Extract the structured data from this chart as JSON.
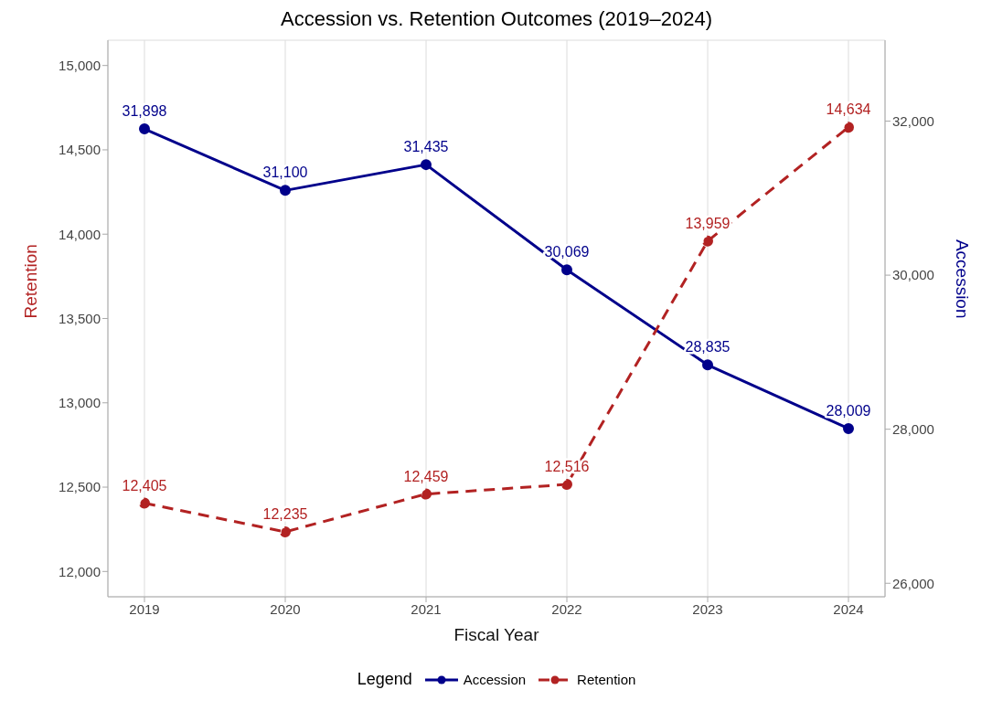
{
  "chart_data": {
    "type": "line",
    "title": "Accession vs. Retention Outcomes (2019–2024)",
    "xlabel": "Fiscal Year",
    "ylabel": "Retention",
    "y2label": "Accession",
    "legend_title": "Legend",
    "categories": [
      "2019",
      "2020",
      "2021",
      "2022",
      "2023",
      "2024"
    ],
    "series": [
      {
        "name": "Accession",
        "color": "#00008b",
        "axis": "y2",
        "line_style": "solid",
        "values": [
          31898,
          31100,
          31435,
          30069,
          28835,
          28009
        ],
        "value_labels": [
          "31,898",
          "31,100",
          "31,435",
          "30,069",
          "28,835",
          "28,009"
        ]
      },
      {
        "name": "Retention",
        "color": "#b22222",
        "axis": "y",
        "line_style": "dashed",
        "values": [
          12405,
          12235,
          12459,
          12516,
          13959,
          14634
        ],
        "value_labels": [
          "12,405",
          "12,235",
          "12,459",
          "12,516",
          "13,959",
          "14,634"
        ]
      }
    ],
    "ylim": [
      11850,
      15150
    ],
    "yticks": [
      {
        "value": 12000,
        "label": "12,000"
      },
      {
        "value": 12500,
        "label": "12,500"
      },
      {
        "value": 13000,
        "label": "13,000"
      },
      {
        "value": 13500,
        "label": "13,500"
      },
      {
        "value": 14000,
        "label": "14,000"
      },
      {
        "value": 14500,
        "label": "14,500"
      },
      {
        "value": 15000,
        "label": "15,000"
      }
    ],
    "y2lim": [
      25825,
      33050
    ],
    "y2ticks": [
      {
        "value": 26000,
        "label": "26,000"
      },
      {
        "value": 28000,
        "label": "28,000"
      },
      {
        "value": 30000,
        "label": "30,000"
      },
      {
        "value": 32000,
        "label": "32,000"
      }
    ],
    "marker": "circle",
    "grid": true,
    "legend": "bottom"
  }
}
